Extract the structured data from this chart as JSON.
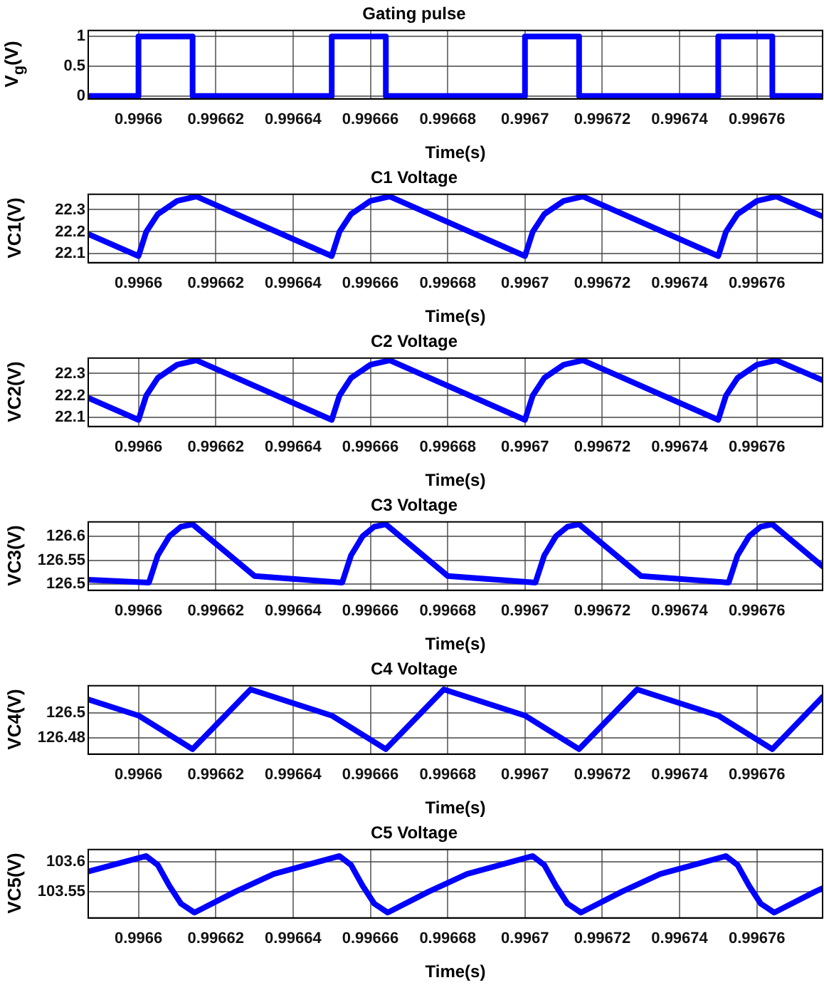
{
  "chart_data": [
    {
      "type": "step",
      "title": "Gating pulse",
      "xlabel": "Time(s)",
      "ylabel": "V$_{g}$(V)",
      "color": "#0000ff",
      "grid": true,
      "xlim": [
        0.996587,
        0.996777
      ],
      "xticks": [
        0.9966,
        0.99662,
        0.99664,
        0.99666,
        0.99668,
        0.9967,
        0.99672,
        0.99674,
        0.99676
      ],
      "ylim": [
        -0.05,
        1.1
      ],
      "yticks": [
        0,
        0.5,
        1
      ],
      "x": [
        0.996587,
        0.9966,
        0.996614,
        0.99665,
        0.996664,
        0.9967,
        0.996714,
        0.99675,
        0.996764,
        0.996777
      ],
      "values": [
        0,
        1,
        0,
        1,
        0,
        1,
        0,
        1,
        0,
        0
      ]
    },
    {
      "type": "line",
      "title": "C1 Voltage",
      "xlabel": "Time(s)",
      "ylabel": "VC1(V)",
      "color": "#0000ff",
      "grid": true,
      "xlim": [
        0.996587,
        0.996777
      ],
      "xticks": [
        0.9966,
        0.99662,
        0.99664,
        0.99666,
        0.99668,
        0.9967,
        0.99672,
        0.99674,
        0.99676
      ],
      "ylim": [
        22.06,
        22.37
      ],
      "yticks": [
        22.1,
        22.2,
        22.3
      ],
      "x": [
        0.996587,
        0.9966,
        0.996602,
        0.996605,
        0.99661,
        0.996615,
        0.99665,
        0.996652,
        0.996655,
        0.99666,
        0.996665,
        0.9967,
        0.996702,
        0.996705,
        0.99671,
        0.996715,
        0.99675,
        0.996752,
        0.996755,
        0.99676,
        0.996765,
        0.996777
      ],
      "values": [
        22.19,
        22.09,
        22.2,
        22.28,
        22.34,
        22.36,
        22.09,
        22.2,
        22.28,
        22.34,
        22.36,
        22.09,
        22.2,
        22.28,
        22.34,
        22.36,
        22.09,
        22.2,
        22.28,
        22.34,
        22.36,
        22.27
      ]
    },
    {
      "type": "line",
      "title": "C2 Voltage",
      "xlabel": "Time(s)",
      "ylabel": "VC2(V)",
      "color": "#0000ff",
      "grid": true,
      "xlim": [
        0.996587,
        0.996777
      ],
      "xticks": [
        0.9966,
        0.99662,
        0.99664,
        0.99666,
        0.99668,
        0.9967,
        0.99672,
        0.99674,
        0.99676
      ],
      "ylim": [
        22.06,
        22.37
      ],
      "yticks": [
        22.1,
        22.2,
        22.3
      ],
      "x": [
        0.996587,
        0.9966,
        0.996602,
        0.996605,
        0.99661,
        0.996615,
        0.99665,
        0.996652,
        0.996655,
        0.99666,
        0.996665,
        0.9967,
        0.996702,
        0.996705,
        0.99671,
        0.996715,
        0.99675,
        0.996752,
        0.996755,
        0.99676,
        0.996765,
        0.996777
      ],
      "values": [
        22.19,
        22.09,
        22.2,
        22.28,
        22.34,
        22.36,
        22.09,
        22.2,
        22.28,
        22.34,
        22.36,
        22.09,
        22.2,
        22.28,
        22.34,
        22.36,
        22.09,
        22.2,
        22.28,
        22.34,
        22.36,
        22.27
      ]
    },
    {
      "type": "line",
      "title": "C3 Voltage",
      "xlabel": "Time(s)",
      "ylabel": "VC3(V)",
      "color": "#0000ff",
      "grid": true,
      "xlim": [
        0.996587,
        0.996777
      ],
      "xticks": [
        0.9966,
        0.99662,
        0.99664,
        0.99666,
        0.99668,
        0.9967,
        0.99672,
        0.99674,
        0.99676
      ],
      "ylim": [
        126.487,
        126.63
      ],
      "yticks": [
        126.5,
        126.55,
        126.6
      ],
      "x": [
        0.996587,
        0.9966027,
        0.996605,
        0.996608,
        0.996611,
        0.996614,
        0.99663,
        0.9966527,
        0.996655,
        0.996658,
        0.996661,
        0.996664,
        0.99668,
        0.9967027,
        0.996705,
        0.996708,
        0.996711,
        0.996714,
        0.99673,
        0.9967527,
        0.996755,
        0.996758,
        0.996761,
        0.996764,
        0.996777
      ],
      "values": [
        126.509,
        126.503,
        126.56,
        126.6,
        126.62,
        126.625,
        126.517,
        126.503,
        126.56,
        126.6,
        126.62,
        126.625,
        126.517,
        126.503,
        126.56,
        126.6,
        126.62,
        126.625,
        126.517,
        126.503,
        126.56,
        126.6,
        126.62,
        126.625,
        126.537
      ]
    },
    {
      "type": "line",
      "title": "C4 Voltage",
      "xlabel": "Time(s)",
      "ylabel": "VC4(V)",
      "color": "#0000ff",
      "grid": true,
      "xlim": [
        0.996587,
        0.996777
      ],
      "xticks": [
        0.9966,
        0.99662,
        0.99664,
        0.99666,
        0.99668,
        0.9967,
        0.99672,
        0.99674,
        0.99676
      ],
      "ylim": [
        126.467,
        126.522
      ],
      "yticks": [
        126.48,
        126.5
      ],
      "x": [
        0.996587,
        0.9966,
        0.996614,
        0.996629,
        0.99665,
        0.996664,
        0.996679,
        0.9967,
        0.996714,
        0.996729,
        0.99675,
        0.996764,
        0.996777
      ],
      "values": [
        126.511,
        126.498,
        126.471,
        126.519,
        126.498,
        126.471,
        126.519,
        126.498,
        126.471,
        126.519,
        126.498,
        126.471,
        126.513
      ]
    },
    {
      "type": "line",
      "title": "C5 Voltage",
      "xlabel": "Time(s)",
      "ylabel": "VC5(V)",
      "color": "#0000ff",
      "grid": true,
      "xlim": [
        0.996587,
        0.996777
      ],
      "xticks": [
        0.9966,
        0.99662,
        0.99664,
        0.99666,
        0.99668,
        0.9967,
        0.99672,
        0.99674,
        0.99676
      ],
      "ylim": [
        103.506,
        103.621
      ],
      "yticks": [
        103.55,
        103.6
      ],
      "x": [
        0.996587,
        0.996602,
        0.996605,
        0.996608,
        0.996611,
        0.9966145,
        0.996625,
        0.996635,
        0.996652,
        0.996655,
        0.996658,
        0.996661,
        0.9966645,
        0.996675,
        0.996685,
        0.996702,
        0.996705,
        0.996708,
        0.996711,
        0.9967145,
        0.996725,
        0.996735,
        0.996752,
        0.996755,
        0.996758,
        0.996761,
        0.9967645,
        0.996775,
        0.996777
      ],
      "values": [
        103.584,
        103.61,
        103.595,
        103.56,
        103.53,
        103.515,
        103.55,
        103.58,
        103.61,
        103.595,
        103.56,
        103.53,
        103.515,
        103.55,
        103.58,
        103.61,
        103.595,
        103.56,
        103.53,
        103.515,
        103.55,
        103.58,
        103.61,
        103.595,
        103.56,
        103.53,
        103.515,
        103.55,
        103.556
      ]
    }
  ]
}
